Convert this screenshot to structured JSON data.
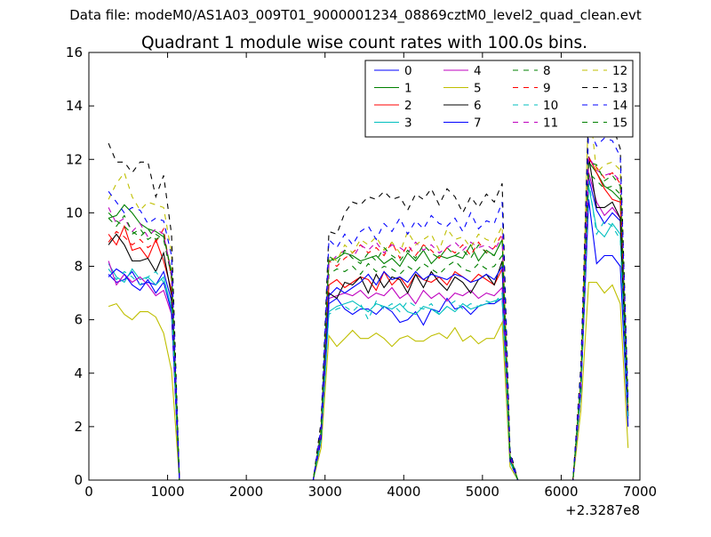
{
  "figure": {
    "suptitle": "Data file: modeM0/AS1A03_009T01_9000001234_08869cztM0_level2_quad_clean.evt"
  },
  "chart_data": {
    "type": "line",
    "title": "Quadrant 1 module wise count rates with 100.0s bins.",
    "xlabel": "",
    "ylabel": "",
    "x_offset_label": "+2.3287e8",
    "xlim": [
      0,
      7000
    ],
    "ylim": [
      0,
      16
    ],
    "x_ticks": [
      0,
      1000,
      2000,
      3000,
      4000,
      5000,
      6000,
      7000
    ],
    "y_ticks": [
      0,
      2,
      4,
      6,
      8,
      10,
      12,
      14,
      16
    ],
    "grid": false,
    "legend_position": "top-right",
    "legend_columns": 4,
    "x": [
      150,
      250,
      350,
      450,
      550,
      650,
      750,
      850,
      950,
      1050,
      1150,
      1250,
      1350,
      1450,
      1550,
      1650,
      1750,
      1850,
      1950,
      2050,
      2150,
      2250,
      2350,
      2450,
      2550,
      2650,
      2750,
      2850,
      2950,
      3050,
      3150,
      3250,
      3350,
      3450,
      3550,
      3650,
      3750,
      3850,
      3950,
      4050,
      4150,
      4250,
      4350,
      4450,
      4550,
      4650,
      4750,
      4850,
      4950,
      5050,
      5150,
      5250,
      5350,
      5450,
      5550,
      5650,
      5750,
      5850,
      5950,
      6050,
      6150,
      6250,
      6350,
      6450,
      6550,
      6650,
      6750,
      6850
    ],
    "series": [
      {
        "name": "0",
        "color": "#0000ff",
        "dash": "solid",
        "values": [
          null,
          7.7,
          7.4,
          7.5,
          7.8,
          7.3,
          7.4,
          7.3,
          7.8,
          6.7,
          0,
          0,
          0,
          0,
          0,
          0,
          0,
          0,
          0,
          0,
          0,
          0,
          0,
          0,
          0,
          0,
          0,
          0,
          1.5,
          6.6,
          6.8,
          6.4,
          6.2,
          6.4,
          6.4,
          6.2,
          6.5,
          6.3,
          5.9,
          6.0,
          6.3,
          5.8,
          6.4,
          6.3,
          6.8,
          6.4,
          6.5,
          6.2,
          6.5,
          6.6,
          6.6,
          6.8,
          0.7,
          0,
          0,
          0,
          0,
          0,
          0,
          0,
          0,
          3.3,
          11.3,
          10.1,
          9.6,
          10.0,
          9.7,
          2.4
        ]
      },
      {
        "name": "1",
        "color": "#008000",
        "dash": "solid",
        "values": [
          null,
          9.8,
          9.9,
          10.3,
          10.0,
          9.6,
          9.4,
          9.3,
          9.1,
          7.8,
          0,
          0,
          0,
          0,
          0,
          0,
          0,
          0,
          0,
          0,
          0,
          0,
          0,
          0,
          0,
          0,
          0,
          0,
          1.8,
          8.2,
          8.3,
          8.5,
          8.4,
          8.2,
          8.3,
          8.4,
          8.1,
          8.3,
          8.0,
          8.5,
          8.2,
          8.6,
          8.1,
          8.4,
          8.3,
          8.4,
          8.3,
          8.8,
          8.2,
          8.6,
          8.4,
          9.0,
          0.9,
          0,
          0,
          0,
          0,
          0,
          0,
          0,
          0,
          3.7,
          11.9,
          11.5,
          11.0,
          10.8,
          10.5,
          2.7
        ]
      },
      {
        "name": "2",
        "color": "#ff0000",
        "dash": "solid",
        "values": [
          null,
          9.2,
          8.8,
          9.5,
          8.6,
          8.7,
          8.3,
          9.0,
          8.2,
          7.1,
          0,
          0,
          0,
          0,
          0,
          0,
          0,
          0,
          0,
          0,
          0,
          0,
          0,
          0,
          0,
          0,
          0,
          0,
          1.7,
          7.3,
          7.5,
          7.2,
          7.4,
          7.6,
          7.5,
          7.1,
          7.8,
          7.3,
          7.6,
          7.2,
          7.7,
          7.5,
          7.4,
          7.6,
          7.3,
          7.8,
          7.6,
          7.4,
          7.7,
          7.5,
          7.3,
          7.9,
          0.8,
          0,
          0,
          0,
          0,
          0,
          0,
          0,
          0,
          3.5,
          12.1,
          11.5,
          10.9,
          10.5,
          10.4,
          2.5
        ]
      },
      {
        "name": "3",
        "color": "#00bfbf",
        "dash": "solid",
        "values": [
          null,
          8.1,
          7.6,
          7.4,
          7.9,
          7.5,
          7.6,
          7.3,
          7.6,
          6.4,
          0,
          0,
          0,
          0,
          0,
          0,
          0,
          0,
          0,
          0,
          0,
          0,
          0,
          0,
          0,
          0,
          0,
          0,
          1.5,
          6.3,
          6.5,
          6.6,
          6.7,
          6.5,
          6.3,
          6.6,
          6.5,
          6.4,
          6.6,
          6.3,
          6.2,
          6.5,
          6.4,
          6.2,
          6.5,
          6.3,
          6.6,
          6.4,
          6.5,
          6.6,
          6.7,
          6.8,
          0.7,
          0,
          0,
          0,
          0,
          0,
          0,
          0,
          0,
          3.3,
          11.0,
          9.4,
          9.1,
          9.6,
          9.2,
          2.3
        ]
      },
      {
        "name": "4",
        "color": "#bf00bf",
        "dash": "solid",
        "values": [
          null,
          8.2,
          7.3,
          7.7,
          7.4,
          7.6,
          7.3,
          6.9,
          7.1,
          6.2,
          0,
          0,
          0,
          0,
          0,
          0,
          0,
          0,
          0,
          0,
          0,
          0,
          0,
          0,
          0,
          0,
          0,
          0,
          1.6,
          6.8,
          6.9,
          7.0,
          6.9,
          7.1,
          6.8,
          7.0,
          6.9,
          7.2,
          6.8,
          7.0,
          6.6,
          7.1,
          6.8,
          7.0,
          6.7,
          7.0,
          6.9,
          7.1,
          6.8,
          7.0,
          6.9,
          7.2,
          0.7,
          0,
          0,
          0,
          0,
          0,
          0,
          0,
          0,
          3.4,
          11.5,
          10.4,
          9.9,
          10.2,
          9.8,
          2.4
        ]
      },
      {
        "name": "5",
        "color": "#bfbf00",
        "dash": "solid",
        "values": [
          null,
          6.5,
          6.6,
          6.2,
          6.0,
          6.3,
          6.3,
          6.1,
          5.5,
          4.1,
          0,
          0,
          0,
          0,
          0,
          0,
          0,
          0,
          0,
          0,
          0,
          0,
          0,
          0,
          0,
          0,
          0,
          0,
          1.2,
          5.4,
          5.0,
          5.3,
          5.6,
          5.3,
          5.3,
          5.5,
          5.3,
          5.0,
          5.3,
          5.4,
          5.2,
          5.2,
          5.4,
          5.5,
          5.3,
          5.7,
          5.2,
          5.4,
          5.1,
          5.3,
          5.3,
          5.9,
          0.5,
          0,
          0,
          0,
          0,
          0,
          0,
          0,
          0,
          2.6,
          7.4,
          7.4,
          7.0,
          7.3,
          6.6,
          1.2
        ]
      },
      {
        "name": "6",
        "color": "#000000",
        "dash": "solid",
        "values": [
          null,
          8.8,
          9.2,
          8.8,
          8.2,
          8.2,
          8.3,
          7.8,
          8.5,
          6.9,
          0,
          0,
          0,
          0,
          0,
          0,
          0,
          0,
          0,
          0,
          0,
          0,
          0,
          0,
          0,
          0,
          0,
          0,
          1.7,
          7.0,
          6.8,
          7.4,
          7.3,
          7.6,
          7.0,
          7.7,
          7.2,
          7.6,
          7.5,
          7.0,
          7.7,
          7.2,
          7.8,
          7.4,
          7.1,
          7.6,
          7.4,
          7.0,
          7.5,
          7.7,
          7.3,
          8.2,
          0.8,
          0,
          0,
          0,
          0,
          0,
          0,
          0,
          0,
          3.5,
          12.1,
          10.2,
          10.2,
          10.4,
          9.8,
          2.4
        ]
      },
      {
        "name": "7",
        "color": "#0000ff",
        "dash": "solid",
        "values": [
          null,
          7.6,
          7.9,
          7.7,
          7.3,
          7.1,
          7.5,
          7.0,
          7.4,
          6.3,
          0,
          0,
          0,
          0,
          0,
          0,
          0,
          0,
          0,
          0,
          0,
          0,
          0,
          0,
          0,
          0,
          0,
          0,
          1.5,
          6.9,
          7.2,
          7.0,
          7.2,
          7.4,
          7.7,
          7.3,
          7.8,
          7.5,
          7.6,
          7.4,
          7.8,
          7.5,
          7.7,
          7.6,
          7.5,
          7.7,
          7.6,
          7.4,
          7.5,
          7.7,
          7.5,
          8.0,
          0.7,
          0,
          0,
          0,
          0,
          0,
          0,
          0,
          0,
          3.3,
          10.5,
          8.1,
          8.4,
          8.4,
          8.0,
          2.0
        ]
      },
      {
        "name": "8",
        "color": "#008000",
        "dash": "dashed",
        "values": [
          null,
          10.0,
          9.7,
          9.5,
          9.2,
          9.4,
          9.0,
          9.2,
          9.0,
          7.6,
          0,
          0,
          0,
          0,
          0,
          0,
          0,
          0,
          0,
          0,
          0,
          0,
          0,
          0,
          0,
          0,
          0,
          0,
          1.8,
          7.7,
          7.9,
          7.8,
          8.0,
          7.7,
          8.1,
          7.8,
          8.0,
          7.9,
          7.7,
          8.0,
          7.8,
          8.1,
          7.9,
          7.7,
          8.0,
          8.2,
          7.9,
          7.8,
          8.1,
          7.9,
          8.0,
          8.4,
          0.8,
          0,
          0,
          0,
          0,
          0,
          0,
          0,
          0,
          3.6,
          11.5,
          11.2,
          10.9,
          11.0,
          10.7,
          2.6
        ]
      },
      {
        "name": "9",
        "color": "#ff0000",
        "dash": "dashed",
        "values": [
          null,
          8.9,
          9.3,
          9.1,
          8.8,
          9.0,
          8.7,
          8.9,
          9.4,
          7.5,
          0,
          0,
          0,
          0,
          0,
          0,
          0,
          0,
          0,
          0,
          0,
          0,
          0,
          0,
          0,
          0,
          0,
          0,
          1.8,
          8.2,
          8.0,
          8.3,
          8.5,
          8.8,
          8.5,
          8.7,
          8.4,
          8.9,
          8.3,
          8.8,
          8.4,
          8.8,
          8.6,
          8.3,
          8.7,
          8.5,
          8.8,
          8.4,
          8.9,
          8.5,
          8.7,
          9.2,
          0.9,
          0,
          0,
          0,
          0,
          0,
          0,
          0,
          0,
          3.7,
          12.0,
          11.7,
          11.3,
          11.5,
          11.1,
          2.7
        ]
      },
      {
        "name": "10",
        "color": "#00bfbf",
        "dash": "dashed",
        "values": [
          null,
          7.9,
          7.5,
          7.8,
          7.6,
          7.3,
          7.6,
          7.8,
          7.4,
          6.5,
          0,
          0,
          0,
          0,
          0,
          0,
          0,
          0,
          0,
          0,
          0,
          0,
          0,
          0,
          0,
          0,
          0,
          0,
          1.5,
          6.2,
          6.4,
          6.5,
          6.3,
          6.6,
          6.0,
          6.7,
          6.4,
          6.6,
          6.3,
          6.7,
          6.5,
          6.4,
          6.6,
          6.2,
          6.5,
          6.7,
          6.4,
          6.6,
          6.5,
          6.7,
          6.6,
          7.0,
          0.7,
          0,
          0,
          0,
          0,
          0,
          0,
          0,
          0,
          3.3,
          11.2,
          9.2,
          9.7,
          9.5,
          9.0,
          2.3
        ]
      },
      {
        "name": "11",
        "color": "#bf00bf",
        "dash": "dashed",
        "values": [
          null,
          10.2,
          9.6,
          9.8,
          9.3,
          9.6,
          9.1,
          9.4,
          9.2,
          7.7,
          0,
          0,
          0,
          0,
          0,
          0,
          0,
          0,
          0,
          0,
          0,
          0,
          0,
          0,
          0,
          0,
          0,
          0,
          1.8,
          8.1,
          8.4,
          8.6,
          8.3,
          8.8,
          8.6,
          8.9,
          8.5,
          8.8,
          8.7,
          8.5,
          8.9,
          8.6,
          8.8,
          8.5,
          8.7,
          8.9,
          8.6,
          8.9,
          8.7,
          8.8,
          8.6,
          9.1,
          0.9,
          0,
          0,
          0,
          0,
          0,
          0,
          0,
          0,
          3.7,
          12.1,
          11.6,
          11.4,
          11.5,
          11.2,
          2.7
        ]
      },
      {
        "name": "12",
        "color": "#bfbf00",
        "dash": "dashed",
        "values": [
          null,
          10.5,
          11.1,
          11.5,
          10.6,
          10.1,
          10.4,
          10.3,
          10.2,
          8.5,
          0,
          0,
          0,
          0,
          0,
          0,
          0,
          0,
          0,
          0,
          0,
          0,
          0,
          0,
          0,
          0,
          0,
          0,
          2.0,
          8.4,
          8.2,
          8.8,
          8.5,
          9.0,
          8.8,
          9.1,
          8.6,
          8.9,
          8.5,
          9.3,
          8.8,
          9.0,
          9.2,
          8.6,
          9.4,
          9.0,
          9.1,
          8.7,
          9.2,
          9.0,
          8.9,
          9.5,
          0.9,
          0,
          0,
          0,
          0,
          0,
          0,
          0,
          0,
          3.8,
          14.3,
          11.5,
          11.8,
          11.9,
          11.6,
          2.8
        ]
      },
      {
        "name": "13",
        "color": "#000000",
        "dash": "dashed",
        "values": [
          null,
          12.6,
          11.9,
          11.9,
          11.5,
          11.9,
          11.9,
          10.6,
          11.4,
          9.2,
          0,
          0,
          0,
          0,
          0,
          0,
          0,
          0,
          0,
          0,
          0,
          0,
          0,
          0,
          0,
          0,
          0,
          0,
          2.2,
          9.3,
          9.2,
          10.0,
          10.4,
          10.3,
          10.6,
          10.5,
          10.8,
          10.5,
          10.6,
          10.1,
          10.7,
          10.5,
          10.9,
          10.3,
          10.9,
          10.6,
          10.0,
          10.6,
          10.2,
          10.7,
          10.4,
          11.1,
          1.1,
          0,
          0,
          0,
          0,
          0,
          0,
          0,
          0,
          4.3,
          14.0,
          13.4,
          13.6,
          13.3,
          12.4,
          3.0
        ]
      },
      {
        "name": "14",
        "color": "#0000ff",
        "dash": "dashed",
        "values": [
          null,
          10.8,
          10.4,
          10.0,
          10.2,
          10.1,
          9.6,
          9.8,
          9.7,
          8.4,
          0,
          0,
          0,
          0,
          0,
          0,
          0,
          0,
          0,
          0,
          0,
          0,
          0,
          0,
          0,
          0,
          0,
          0,
          2.0,
          9.0,
          8.7,
          9.2,
          8.8,
          9.3,
          9.5,
          9.0,
          9.6,
          9.3,
          9.8,
          9.2,
          9.7,
          9.4,
          9.9,
          9.6,
          9.5,
          9.8,
          9.3,
          10.0,
          9.4,
          9.7,
          9.6,
          10.4,
          1.0,
          0,
          0,
          0,
          0,
          0,
          0,
          0,
          0,
          4.1,
          13.2,
          12.5,
          12.8,
          12.7,
          12.1,
          2.9
        ]
      },
      {
        "name": "15",
        "color": "#008000",
        "dash": "dashed",
        "values": [
          null,
          9.8,
          9.5,
          9.9,
          9.3,
          9.1,
          9.4,
          9.0,
          9.2,
          7.7,
          0,
          0,
          0,
          0,
          0,
          0,
          0,
          0,
          0,
          0,
          0,
          0,
          0,
          0,
          0,
          0,
          0,
          0,
          1.8,
          8.4,
          8.1,
          8.6,
          8.3,
          8.1,
          8.5,
          8.2,
          8.7,
          8.4,
          8.2,
          8.6,
          8.3,
          8.8,
          8.5,
          8.3,
          8.7,
          8.4,
          8.6,
          8.3,
          8.8,
          8.5,
          8.4,
          9.0,
          0.9,
          0,
          0,
          0,
          0,
          0,
          0,
          0,
          0,
          3.7,
          11.9,
          11.8,
          11.2,
          11.4,
          11.0,
          2.6
        ]
      }
    ]
  }
}
